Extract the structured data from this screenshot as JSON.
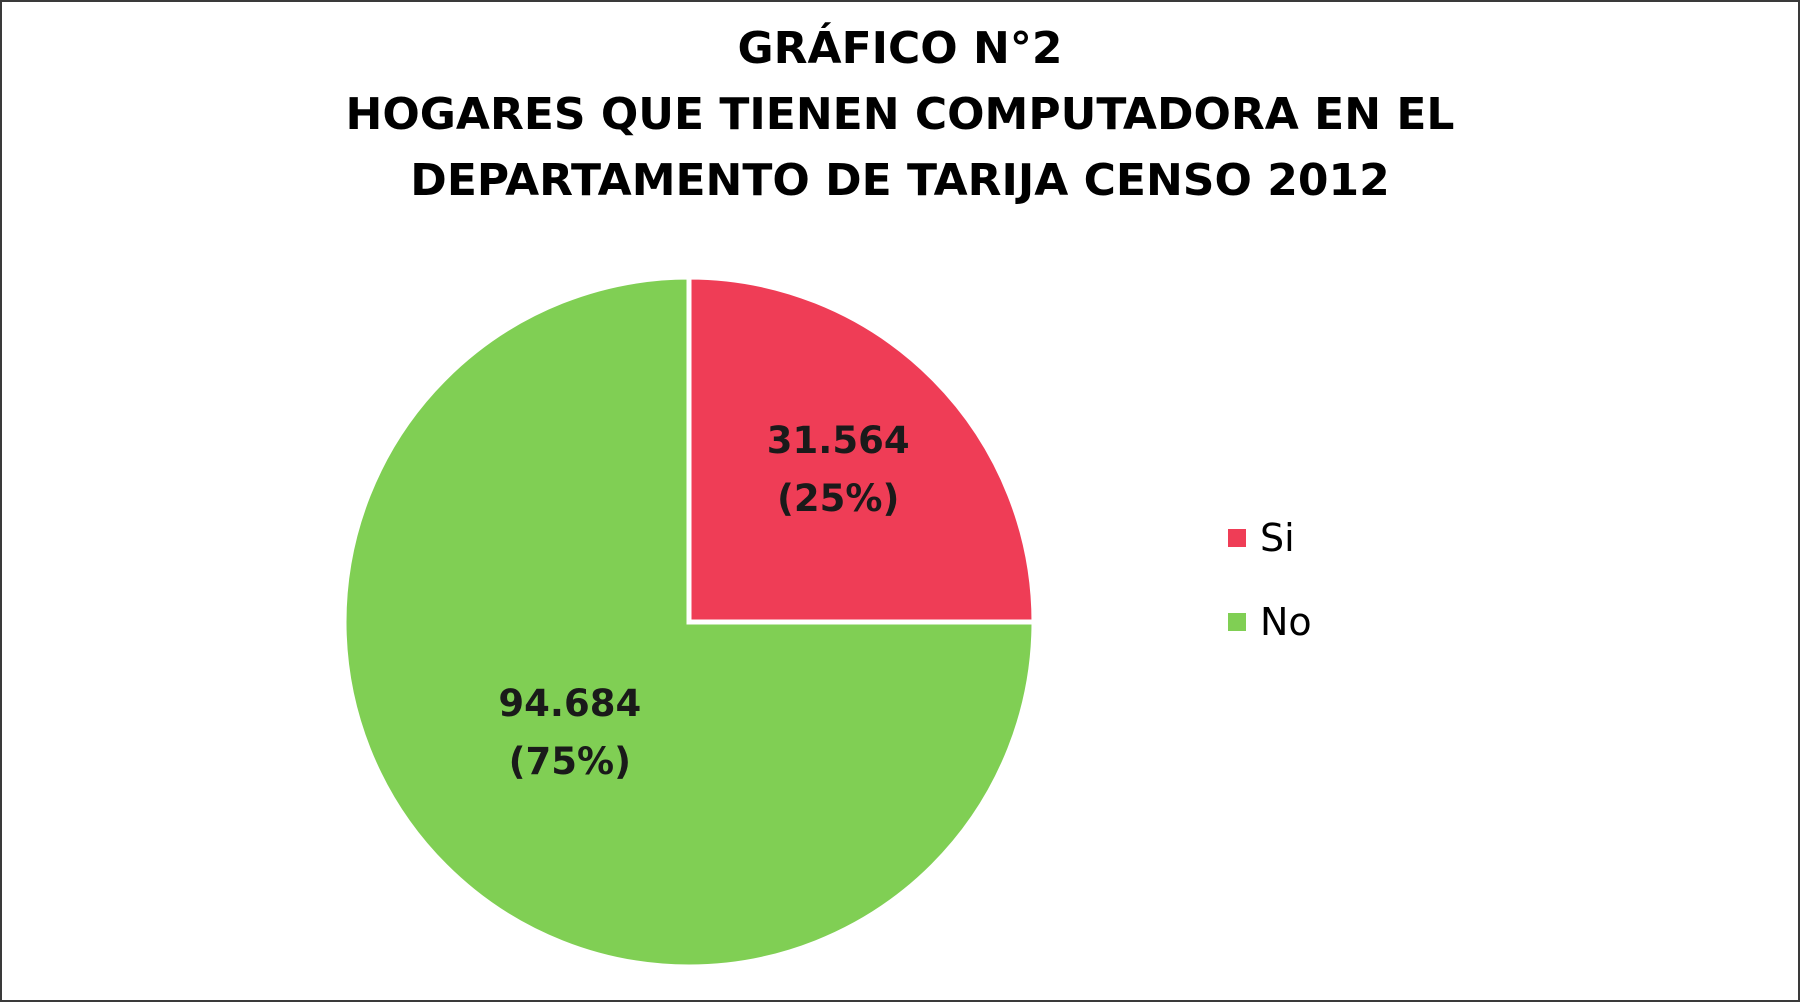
{
  "chart_data": {
    "type": "pie",
    "title_lines": [
      "GRÁFICO N°2",
      "HOGARES QUE TIENEN COMPUTADORA EN EL",
      "DEPARTAMENTO DE TARIJA CENSO 2012"
    ],
    "slices": [
      {
        "name": "Si",
        "value": 31564,
        "value_label": "31.564",
        "percent_label": "(25%)",
        "color": "#ef3d56"
      },
      {
        "name": "No",
        "value": 94684,
        "value_label": "94.684",
        "percent_label": "(75%)",
        "color": "#80cf54"
      }
    ],
    "legend_position": "right",
    "slice_border_color": "#ffffff"
  }
}
